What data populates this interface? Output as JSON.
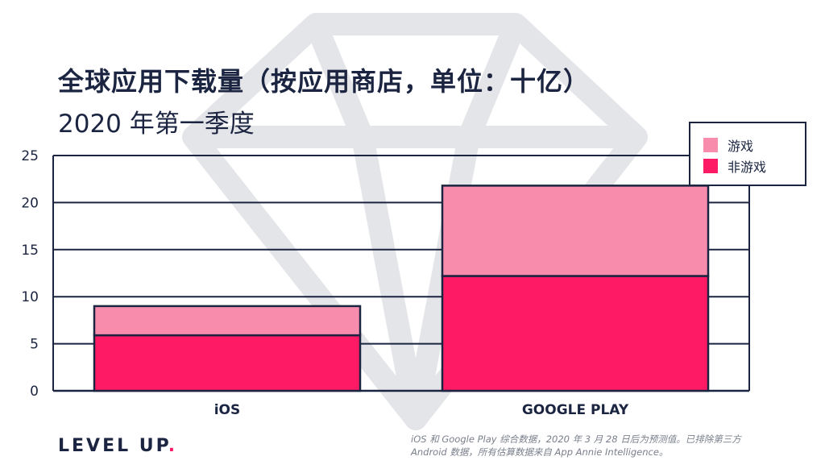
{
  "title": "全球应用下载量（按应用商店，单位：十亿）",
  "subtitle": "2020 年第一季度",
  "brand": {
    "text": "LEVEL UP",
    "dot": ".",
    "accent_color": "#ff1a66"
  },
  "footnote": {
    "line1": "iOS 和 Google Play 综合数据，2020 年 3 月 28 日后为预测值。已排除第三方",
    "line2": "Android 数据，所有估算数据来自 App Annie Intelligence。"
  },
  "colors": {
    "games": "#f78cad",
    "non_games": "#ff1a66",
    "axis": "#1b2440",
    "watermark": "#e4e5e8"
  },
  "legend": {
    "placement": "top-right",
    "games_label": "游戏",
    "non_games_label": "非游戏"
  },
  "chart_data": {
    "type": "bar",
    "stacked": true,
    "categories": [
      "iOS",
      "GOOGLE PLAY"
    ],
    "series": [
      {
        "name": "非游戏",
        "values": [
          5.9,
          12.2
        ]
      },
      {
        "name": "游戏",
        "values": [
          3.1,
          9.6
        ]
      }
    ],
    "ylim": [
      0,
      25
    ],
    "yticks": [
      0,
      5,
      10,
      15,
      20,
      25
    ],
    "grid": true,
    "legend": "top-right"
  }
}
